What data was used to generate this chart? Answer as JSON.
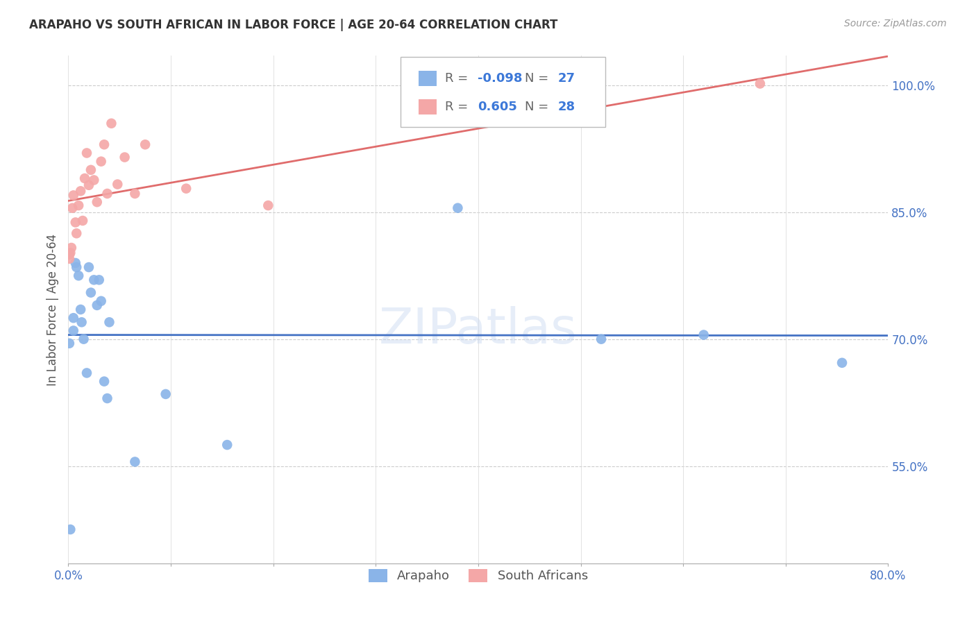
{
  "title": "ARAPAHO VS SOUTH AFRICAN IN LABOR FORCE | AGE 20-64 CORRELATION CHART",
  "source": "Source: ZipAtlas.com",
  "ylabel": "In Labor Force | Age 20-64",
  "xlim": [
    0.0,
    0.8
  ],
  "ylim": [
    0.435,
    1.035
  ],
  "xticks": [
    0.0,
    0.1,
    0.2,
    0.3,
    0.4,
    0.5,
    0.6,
    0.7,
    0.8
  ],
  "xticklabels_show": [
    "0.0%",
    "",
    "",
    "",
    "",
    "",
    "",
    "",
    "80.0%"
  ],
  "yticks": [
    0.55,
    0.7,
    0.85,
    1.0
  ],
  "yticklabels": [
    "55.0%",
    "70.0%",
    "85.0%",
    "100.0%"
  ],
  "blue_color": "#8ab4e8",
  "pink_color": "#f4a7a7",
  "blue_line_color": "#4472c4",
  "pink_line_color": "#e06c6c",
  "watermark": "ZIPatlas",
  "legend_r_blue": "-0.098",
  "legend_n_blue": "27",
  "legend_r_pink": "0.605",
  "legend_n_pink": "28",
  "arapaho_x": [
    0.001,
    0.002,
    0.005,
    0.005,
    0.007,
    0.008,
    0.01,
    0.012,
    0.013,
    0.015,
    0.018,
    0.02,
    0.022,
    0.025,
    0.028,
    0.03,
    0.032,
    0.035,
    0.038,
    0.04,
    0.065,
    0.095,
    0.155,
    0.38,
    0.52,
    0.62,
    0.755
  ],
  "arapaho_y": [
    0.695,
    0.475,
    0.71,
    0.725,
    0.79,
    0.785,
    0.775,
    0.735,
    0.72,
    0.7,
    0.66,
    0.785,
    0.755,
    0.77,
    0.74,
    0.77,
    0.745,
    0.65,
    0.63,
    0.72,
    0.555,
    0.635,
    0.575,
    0.855,
    0.7,
    0.705,
    0.672
  ],
  "southafrican_x": [
    0.001,
    0.001,
    0.002,
    0.003,
    0.004,
    0.005,
    0.007,
    0.008,
    0.01,
    0.012,
    0.014,
    0.016,
    0.018,
    0.02,
    0.022,
    0.025,
    0.028,
    0.032,
    0.035,
    0.038,
    0.042,
    0.048,
    0.055,
    0.065,
    0.075,
    0.115,
    0.195,
    0.675
  ],
  "southafrican_y": [
    0.8,
    0.795,
    0.802,
    0.808,
    0.855,
    0.87,
    0.838,
    0.825,
    0.858,
    0.875,
    0.84,
    0.89,
    0.92,
    0.882,
    0.9,
    0.888,
    0.862,
    0.91,
    0.93,
    0.872,
    0.955,
    0.883,
    0.915,
    0.872,
    0.93,
    0.878,
    0.858,
    1.002
  ]
}
